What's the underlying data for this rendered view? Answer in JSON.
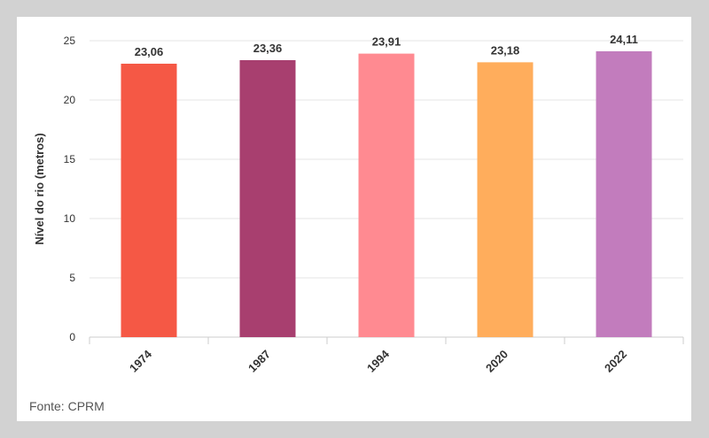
{
  "source": "Fonte: CPRM",
  "colors": {
    "background": "#d2d2d2",
    "panel": "#ffffff",
    "grid": "#e6e6e6",
    "axis": "#cccccc",
    "text": "#333333"
  },
  "chart_data": {
    "type": "bar",
    "title": "",
    "xlabel": "",
    "ylabel": "Nível do rio (metros)",
    "ylim": [
      0,
      25
    ],
    "yticks": [
      0,
      5,
      10,
      15,
      20,
      25
    ],
    "grid": true,
    "legend": "none",
    "categories": [
      "1974",
      "1987",
      "1994",
      "2020",
      "2022"
    ],
    "values": [
      23.06,
      23.36,
      23.91,
      23.18,
      24.11
    ],
    "value_labels": [
      "23,06",
      "23,36",
      "23,91",
      "23,18",
      "24,11"
    ],
    "bar_colors": [
      "#f55845",
      "#a83f6f",
      "#ff8a91",
      "#ffad5c",
      "#c27cbd"
    ]
  }
}
